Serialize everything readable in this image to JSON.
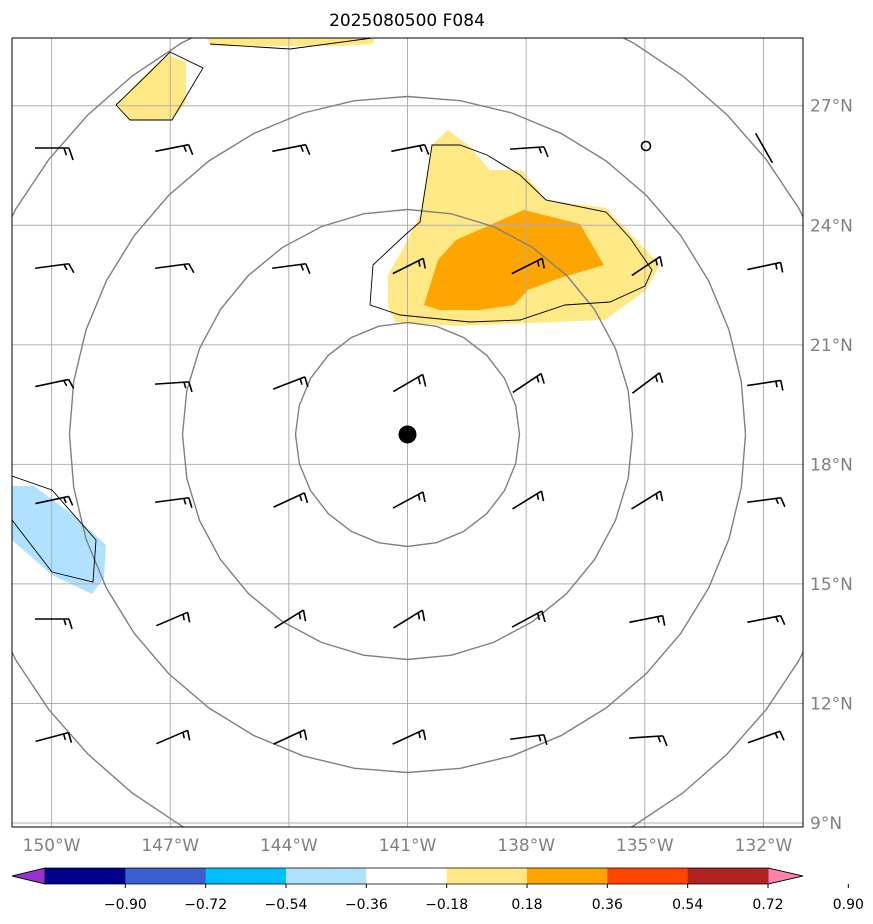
{
  "title": "2025080500 F084",
  "map": {
    "lon_labels": [
      "150°W",
      "147°W",
      "144°W",
      "141°W",
      "138°W",
      "135°W",
      "132°W"
    ],
    "lon_values": [
      -150,
      -147,
      -144,
      -141,
      -138,
      -135,
      -132
    ],
    "lat_labels": [
      "27°N",
      "24°N",
      "21°N",
      "18°N",
      "15°N",
      "12°N",
      "9°N"
    ],
    "lat_values": [
      27,
      24,
      21,
      18,
      15,
      12,
      9
    ],
    "lon_range": [
      -151,
      -131
    ],
    "lat_range": [
      8.9,
      28.7
    ],
    "grid": true,
    "center": {
      "lon": -141,
      "lat": 18.75
    },
    "range_ring_count": 4
  },
  "colorbar": {
    "tick_labels": [
      "−0.90",
      "−0.72",
      "−0.54",
      "−0.36",
      "−0.18",
      "0.18",
      "0.36",
      "0.54",
      "0.72",
      "0.90"
    ],
    "bounds": [
      -0.9,
      -0.72,
      -0.54,
      -0.36,
      -0.18,
      0.18,
      0.36,
      0.54,
      0.72,
      0.9
    ],
    "colors": [
      "#9932cc",
      "#00008b",
      "#3a5fcd",
      "#00bfff",
      "#b0e2ff",
      "#ffffff",
      "#ffe986",
      "#ffa500",
      "#ff4500",
      "#b22222",
      "#ff82ab"
    ],
    "extend": "both"
  },
  "colors": {
    "grid": "#b0b0b0",
    "rings": "#808080",
    "outline": "#000000",
    "tick_text": "#808080"
  }
}
